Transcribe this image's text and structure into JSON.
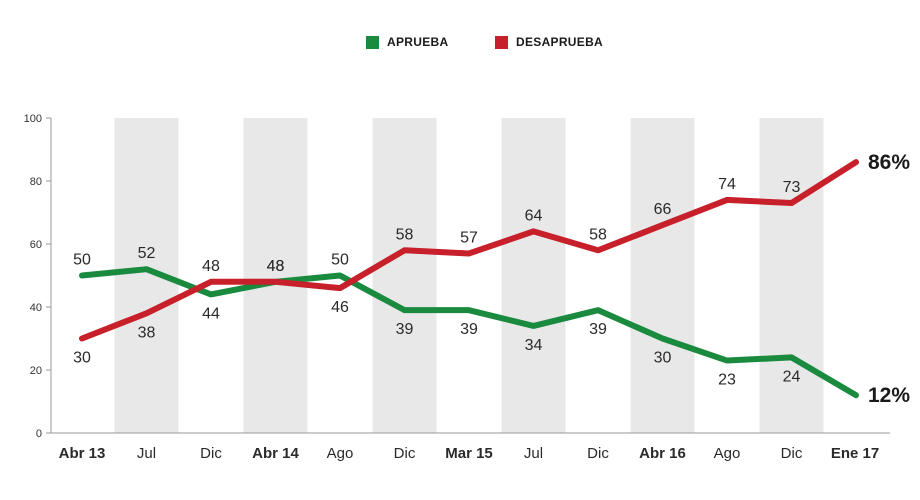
{
  "chart_data": {
    "type": "line",
    "categories": [
      "Abr 13",
      "Jul",
      "Dic",
      "Abr 14",
      "Ago",
      "Dic",
      "Mar 15",
      "Jul",
      "Dic",
      "Abr 16",
      "Ago",
      "Dic",
      "Ene 17"
    ],
    "bold_categories": [
      "Abr 13",
      "Abr 14",
      "Mar 15",
      "Abr 16",
      "Ene 17"
    ],
    "series": [
      {
        "name": "APRUEBA",
        "color": "#1a8a3e",
        "values": [
          50,
          52,
          44,
          48,
          50,
          39,
          39,
          34,
          39,
          30,
          23,
          24,
          12
        ],
        "labels": [
          "50",
          "52",
          "44",
          "48",
          "50",
          "39",
          "39",
          "34",
          "39",
          "30",
          "23",
          "24",
          "12%"
        ]
      },
      {
        "name": "DESAPRUEBA",
        "color": "#c8202a",
        "values": [
          30,
          38,
          48,
          48,
          46,
          58,
          57,
          64,
          58,
          66,
          74,
          73,
          86
        ],
        "labels": [
          "30",
          "38",
          "48",
          "48",
          "46",
          "58",
          "57",
          "64",
          "58",
          "66",
          "74",
          "73",
          "86%"
        ]
      }
    ],
    "yticks": [
      0,
      20,
      40,
      60,
      80,
      100
    ],
    "ylim": [
      0,
      100
    ],
    "grid": false,
    "legend_position": "top-center",
    "band_color": "#e8e8e8"
  }
}
